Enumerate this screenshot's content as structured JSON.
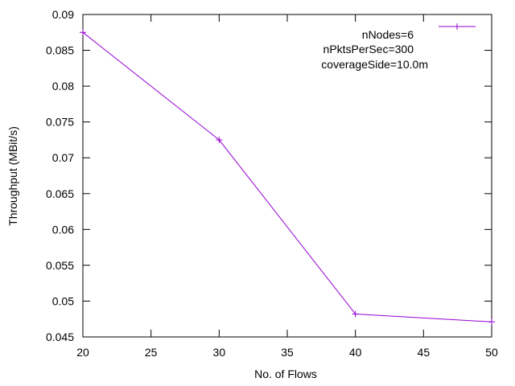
{
  "chart_data": {
    "type": "line",
    "title": "",
    "xlabel": "No. of Flows",
    "ylabel": "Throughput (MBit/s)",
    "xlim": [
      20,
      50
    ],
    "ylim": [
      0.045,
      0.09
    ],
    "x_ticks": [
      20,
      25,
      30,
      35,
      40,
      45,
      50
    ],
    "y_ticks": [
      0.045,
      0.05,
      0.055,
      0.06,
      0.065,
      0.07,
      0.075,
      0.08,
      0.085,
      0.09
    ],
    "x_tick_labels": [
      "20",
      "25",
      "30",
      "35",
      "40",
      "45",
      "50"
    ],
    "y_tick_labels": [
      "0.045",
      "0.05",
      "0.055",
      "0.06",
      "0.065",
      "0.07",
      "0.075",
      "0.08",
      "0.085",
      "0.09"
    ],
    "grid": false,
    "legend_position": "top-right",
    "annotations": [
      "nNodes=6",
      "nPktsPerSec=300",
      "coverageSide=10.0m"
    ],
    "series": [
      {
        "color": "#9400d3",
        "marker": "plus",
        "x": [
          20,
          30,
          40,
          50
        ],
        "y": [
          0.0875,
          0.0725,
          0.0482,
          0.0471
        ]
      }
    ]
  }
}
